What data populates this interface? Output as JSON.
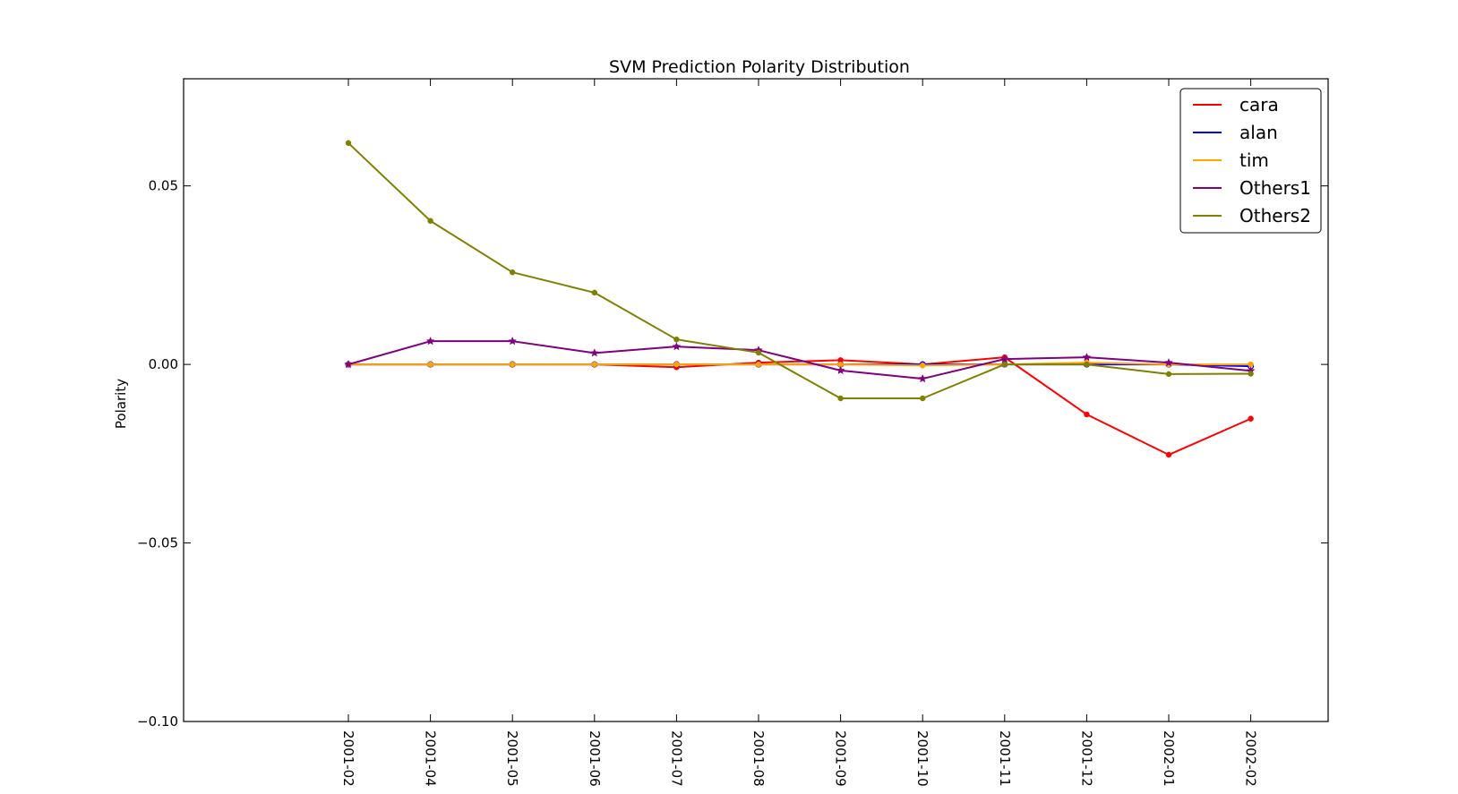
{
  "chart_data": {
    "type": "line",
    "title": "SVM Prediction Polarity Distribution",
    "xlabel": "",
    "ylabel": "Polarity",
    "x": [
      "2001-02",
      "2001-04",
      "2001-05",
      "2001-06",
      "2001-07",
      "2001-08",
      "2001-09",
      "2001-10",
      "2001-11",
      "2001-12",
      "2002-01",
      "2002-02"
    ],
    "ylim": [
      -0.1,
      0.08
    ],
    "yticks": [
      {
        "value": 0.05,
        "label": "0.05"
      },
      {
        "value": 0.0,
        "label": "0.00"
      },
      {
        "value": -0.05,
        "label": "−0.05"
      },
      {
        "value": -0.1,
        "label": "−0.10"
      }
    ],
    "grid": false,
    "legend_position": "top-right",
    "series": [
      {
        "name": "cara",
        "color": "#ff0000",
        "marker": "dot",
        "values": [
          0.0,
          0.0,
          0.0,
          0.0,
          -0.0008,
          0.0005,
          0.0012,
          0.0,
          0.002,
          -0.014,
          -0.0253,
          -0.0152
        ]
      },
      {
        "name": "alan",
        "color": "#0000ff",
        "marker": "circle",
        "values": [
          0.0,
          0.0,
          0.0,
          0.0,
          0.0,
          0.0,
          0.0,
          0.0,
          0.0,
          0.0,
          0.0,
          -0.0005
        ]
      },
      {
        "name": "tim",
        "color": "#ffa500",
        "marker": "dot",
        "values": [
          0.0,
          0.0,
          0.0,
          0.0,
          0.0,
          0.0,
          0.0,
          -0.0003,
          0.0,
          0.0005,
          0.0,
          0.0
        ]
      },
      {
        "name": "Others1",
        "color": "#800080",
        "marker": "star",
        "values": [
          0.0,
          0.0065,
          0.0065,
          0.0032,
          0.005,
          0.004,
          -0.0017,
          -0.004,
          0.0015,
          0.002,
          0.0005,
          -0.0018
        ]
      },
      {
        "name": "Others2",
        "color": "#808000",
        "marker": "dot",
        "values": [
          0.062,
          0.0402,
          0.0258,
          0.0201,
          0.007,
          0.0033,
          -0.0095,
          -0.0095,
          0.0,
          0.0,
          -0.0027,
          -0.0026
        ]
      }
    ]
  }
}
